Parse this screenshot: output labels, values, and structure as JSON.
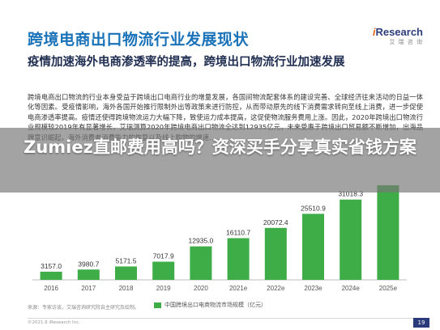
{
  "slide": {
    "title": "跨境电商出口物流行业发展现状",
    "brand_name": "iResearch",
    "brand_sub": "艾 瑞 咨 询",
    "headline": "疫情加速海外电商渗透率的提高，跨境出口物流行业加速发展",
    "body": "跨境电商出口物流的行业本身受益于跨境出口电商行业的增量发展，各国间物流配套体系的建设完善、全球经济往来活动的日益一体化等因素。受疫情影响，海外各国开始推行限制外出等政策来进行防控，从而带动原先的线下消费需求转向至线上消费，进一步促使电商渗透率提高。疫情还使得跨境物流运力大幅下降，致使运力成本提高，这促使物流服务费用上涨。因此，2020年跨境出口物流行业规模较2019年有显著增长，艾瑞测算2020年跨境电商出口物流全达到12935亿元，未来受惠于跨境出口贸易额不断增加，出海品牌意识崛起，海外消费者消费能力的恢复以及线上购物的增速……",
    "banner": "Zumiez直邮费用高吗？资深买手分享真实省钱方案",
    "source": "来源：专家访谈，艾瑞咨询研究院自主研究及绘制。",
    "footer": "©2021.6 iResearch Inc.",
    "page_num": "19"
  },
  "chart_data": {
    "type": "bar",
    "categories": [
      "2016",
      "2017",
      "2018",
      "2019",
      "2020",
      "2021e",
      "2022e",
      "2023e",
      "2024e",
      "2025e"
    ],
    "series": [
      {
        "name": "中国跨境出口电商物流市场规模（亿元）",
        "values": [
          3157.0,
          3980.7,
          5171.5,
          7017.9,
          12935.0,
          16110.7,
          20072.4,
          25510.9,
          31018.3,
          36540.0
        ],
        "labels": [
          "3157.0",
          "3980.7",
          "5171.5",
          "7017.9",
          "12935.0",
          "16110.7",
          "20072.4",
          "25510.9",
          "31018.3",
          ""
        ],
        "color": "#3fad47"
      }
    ],
    "ylim": [
      0,
      40000
    ],
    "grid": false,
    "legend": "bottom-center"
  }
}
